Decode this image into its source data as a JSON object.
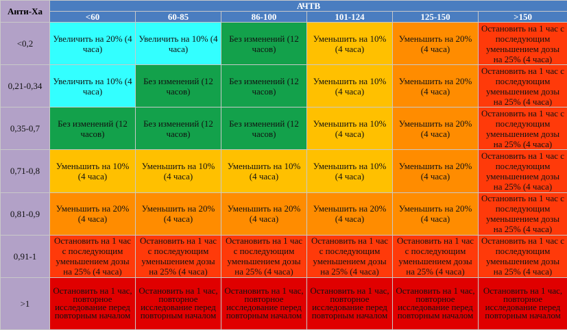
{
  "table": {
    "corner": "Анти-Ха",
    "group_header": "АЧТВ",
    "columns": [
      "<60",
      "60-85",
      "86-100",
      "101-124",
      "125-150",
      ">150"
    ],
    "rows": [
      {
        "label": "<0,2",
        "cells": [
          "Увеличить на 20% (4 часа)",
          "Увеличить на 10% (4 часа)",
          "Без изменений (12 часов)",
          "Уменьшить на 10% (4 часа)",
          "Уменьшить на 20% (4 часа)",
          "Остановить на 1 час с последующим уменьшением дозы на 25% (4 часа)"
        ]
      },
      {
        "label": "0,21-0,34",
        "cells": [
          "Увеличить на 10% (4 часа)",
          "Без изменений (12 часов)",
          "Без изменений (12 часов)",
          "Уменьшить на 10% (4 часа)",
          "Уменьшить на 20% (4 часа)",
          "Остановить на 1 час с последующим уменьшением дозы на 25% (4 часа)"
        ]
      },
      {
        "label": "0,35-0,7",
        "cells": [
          "Без изменений (12 часов)",
          "Без изменений (12 часов)",
          "Без изменений (12 часов)",
          "Уменьшить на 10% (4 часа)",
          "Уменьшить на 20% (4 часа)",
          "Остановить на 1 час с последующим уменьшением дозы на 25% (4 часа)"
        ]
      },
      {
        "label": "0,71-0,8",
        "cells": [
          "Уменьшить на 10% (4 часа)",
          "Уменьшить на 10% (4 часа)",
          "Уменьшить на 10% (4 часа)",
          "Уменьшить на 10% (4 часа)",
          "Уменьшить на 20% (4 часа)",
          "Остановить на 1 час с последующим уменьшением дозы на 25% (4 часа)"
        ]
      },
      {
        "label": "0,81-0,9",
        "cells": [
          "Уменьшить на 20% (4 часа)",
          "Уменьшить на 20% (4 часа)",
          "Уменьшить на 20% (4 часа)",
          "Уменьшить на 20% (4 часа)",
          "Уменьшить на 20% (4 часа)",
          "Остановить на 1 час с последующим уменьшением дозы на 25% (4 часа)"
        ]
      },
      {
        "label": "0,91-1",
        "cells": [
          "Остановить на 1 час с последующим уменьшением дозы на 25% (4 часа)",
          "Остановить на 1 час с последующим уменьшением дозы на 25% (4 часа)",
          "Остановить на 1 час с последующим уменьшением дозы на 25% (4 часа)",
          "Остановить на 1 час с последующим уменьшением дозы на 25% (4 часа)",
          "Остановить на 1 час с последующим уменьшением дозы на 25% (4 часа)",
          "Остановить на 1 час с последующим уменьшением дозы на 25% (4 часа)"
        ]
      },
      {
        "label": ">1",
        "cells": [
          "Остановить на 1 час, повторное исследование перед повторным началом",
          "Остановить на 1 час, повторное исследование перед повторным началом",
          "Остановить на 1 час, повторное исследование перед повторным началом",
          "Остановить на 1 час, повторное исследование перед повторным началом",
          "Остановить на 1 час, повторное исследование перед повторным началом",
          "Остановить на 1 час, повторное исследование перед повторным началом"
        ]
      }
    ]
  }
}
